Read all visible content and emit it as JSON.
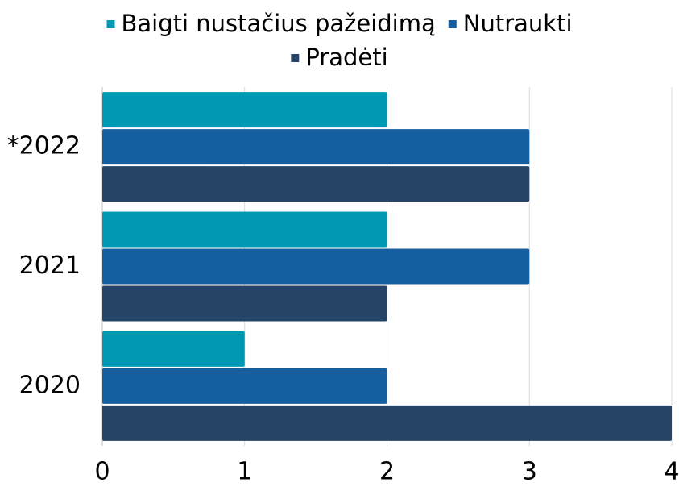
{
  "chart_data": {
    "type": "barh",
    "categories": [
      "*2022",
      "2021",
      "2020"
    ],
    "series": [
      {
        "name": "Baigti nustačius pažeidimą",
        "color": "#0099b4",
        "values": [
          2,
          2,
          1
        ]
      },
      {
        "name": "Nutraukti",
        "color": "#155fa0",
        "values": [
          3,
          3,
          2
        ]
      },
      {
        "name": "Pradėti",
        "color": "#264466",
        "values": [
          3,
          2,
          4
        ]
      }
    ],
    "xlim": [
      0,
      4
    ],
    "xticks": [
      0,
      1,
      2,
      3,
      4
    ],
    "grid": true
  }
}
